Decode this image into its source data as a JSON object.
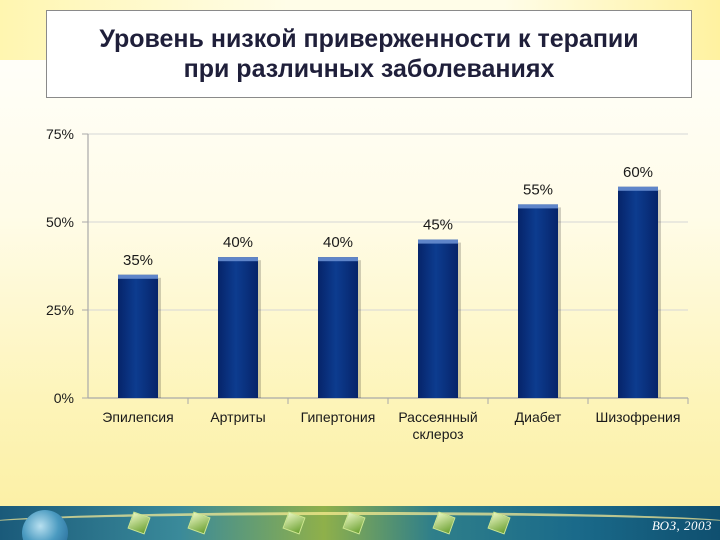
{
  "slide": {
    "title_line1": "Уровень низкой приверженности к терапии",
    "title_line2": "при различных заболеваниях",
    "source": "ВОЗ, 2003"
  },
  "colors": {
    "bar": "#0d3c8f",
    "bar_dark": "#06246a",
    "bar_top": "#5f85c9",
    "axis": "#a9a9a9",
    "grid": "#d6d6d6",
    "text": "#1a1a1a"
  },
  "chart_data": {
    "type": "bar",
    "title": "Уровень низкой приверженности к терапии при различных заболеваниях",
    "categories": [
      [
        "Эпилепсия"
      ],
      [
        "Артриты"
      ],
      [
        "Гипертония"
      ],
      [
        "Рассеянный",
        "склероз"
      ],
      [
        "Диабет"
      ],
      [
        "Шизофрения"
      ]
    ],
    "values": [
      35,
      40,
      40,
      45,
      55,
      60
    ],
    "value_labels": [
      "35%",
      "40%",
      "40%",
      "45%",
      "55%",
      "60%"
    ],
    "yticks": [
      0,
      25,
      50,
      75
    ],
    "ytick_labels": [
      "0%",
      "25%",
      "50%",
      "75%"
    ],
    "ylim": [
      0,
      75
    ],
    "xlabel": "",
    "ylabel": "",
    "grid": true,
    "legend": "none"
  }
}
